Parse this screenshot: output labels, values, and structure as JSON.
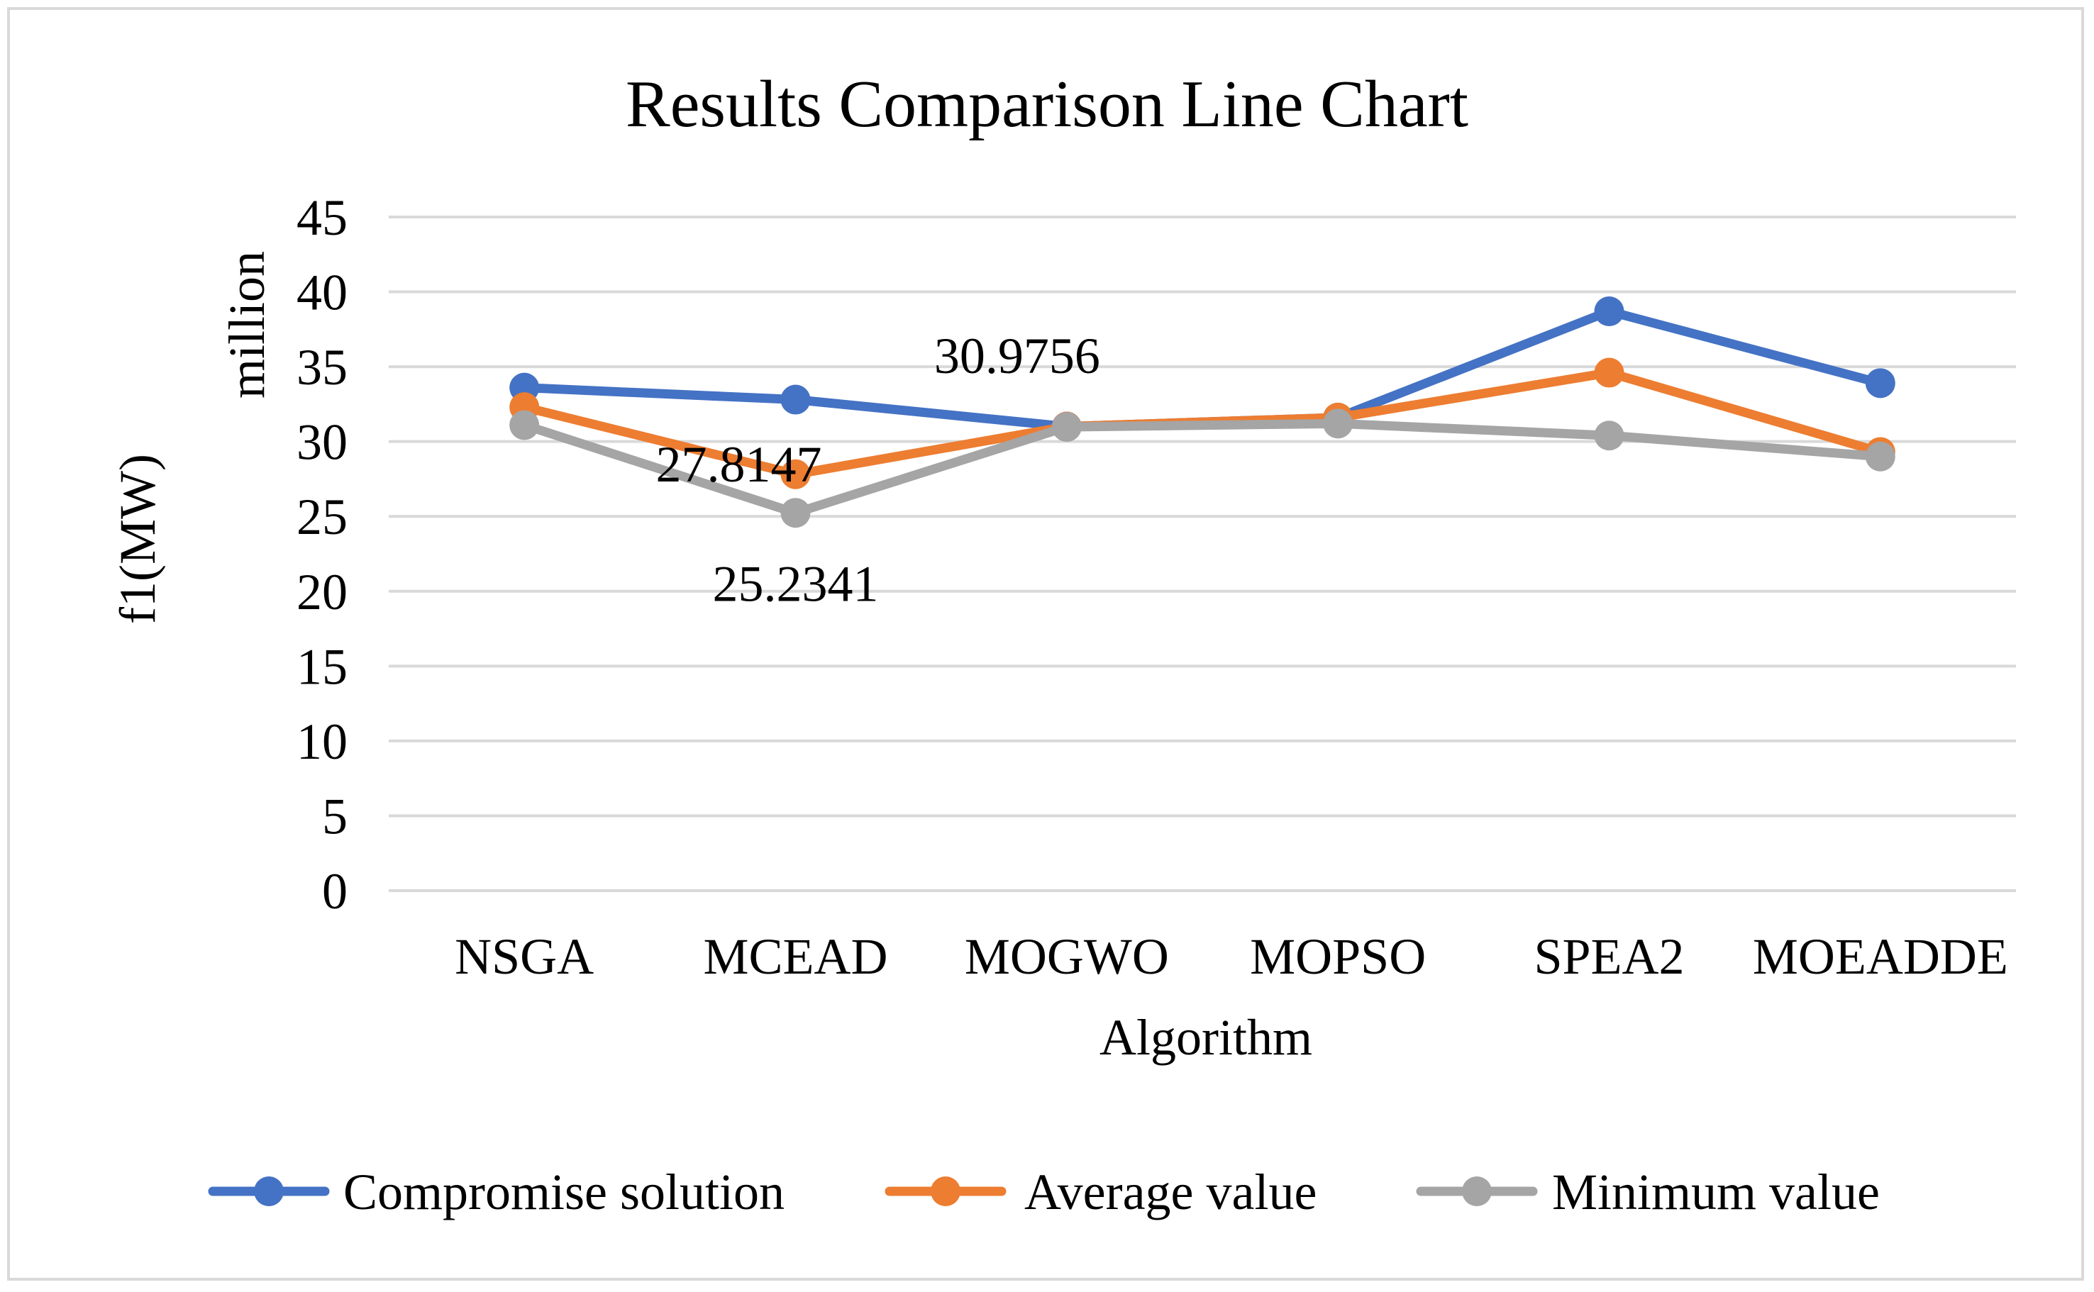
{
  "chart_data": {
    "type": "line",
    "title": "Results Comparison Line Chart",
    "xlabel": "Algorithm",
    "ylabel": "f1(MW)",
    "yunit": "million",
    "categories": [
      "NSGA",
      "MCEAD",
      "MOGWO",
      "MOPSO",
      "SPEA2",
      "MOEADDE"
    ],
    "ylim": [
      0,
      45
    ],
    "yticks": [
      "0",
      "5",
      "10",
      "15",
      "20",
      "25",
      "30",
      "35",
      "40",
      "45"
    ],
    "grid": true,
    "legend_position": "bottom",
    "series": [
      {
        "name": "Compromise solution",
        "color": "#4472c4",
        "values": [
          33.6,
          32.8,
          31.0,
          31.6,
          38.7,
          33.9
        ]
      },
      {
        "name": "Average value",
        "color": "#ed7d31",
        "values": [
          32.3,
          27.8147,
          31.0,
          31.6,
          34.6,
          29.3
        ]
      },
      {
        "name": "Minimum value",
        "color": "#a5a5a5",
        "values": [
          31.1,
          25.2341,
          30.9756,
          31.2,
          30.4,
          29.0
        ]
      }
    ],
    "annotations": [
      {
        "text": "27.8147",
        "series": 1,
        "index": 1
      },
      {
        "text": "25.2341",
        "series": 2,
        "index": 1
      },
      {
        "text": "30.9756",
        "series": 2,
        "index": 2
      }
    ]
  }
}
